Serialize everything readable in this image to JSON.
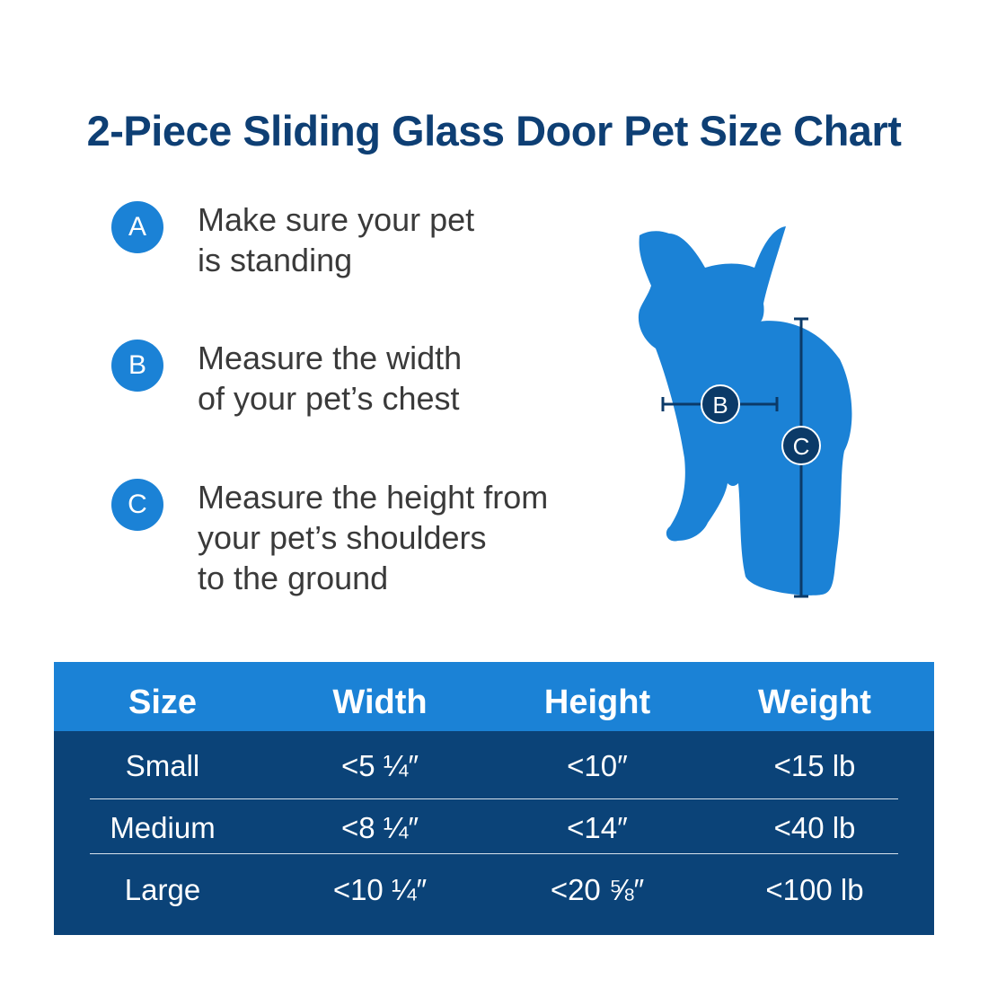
{
  "title": "2-Piece Sliding Glass Door Pet Size Chart",
  "steps": [
    {
      "badge": "A",
      "text": "Make sure your pet\nis standing"
    },
    {
      "badge": "B",
      "text": "Measure the width\nof your pet’s chest"
    },
    {
      "badge": "C",
      "text": "Measure the height from\nyour pet’s shoulders\nto the ground"
    }
  ],
  "illustration": {
    "width_marker": "B",
    "height_marker": "C"
  },
  "table": {
    "headers": [
      "Size",
      "Width",
      "Height",
      "Weight"
    ],
    "rows": [
      [
        "Small",
        "<5 ¼″",
        "<10″",
        "<15 lb"
      ],
      [
        "Medium",
        "<8 ¼″",
        "<14″",
        "<40 lb"
      ],
      [
        "Large",
        "<10 ¼″",
        "<20 ⅝″",
        "<100 lb"
      ]
    ]
  },
  "colors": {
    "title": "#0e3f74",
    "accent_blue": "#1b82d6",
    "table_dark": "#0b4378"
  }
}
